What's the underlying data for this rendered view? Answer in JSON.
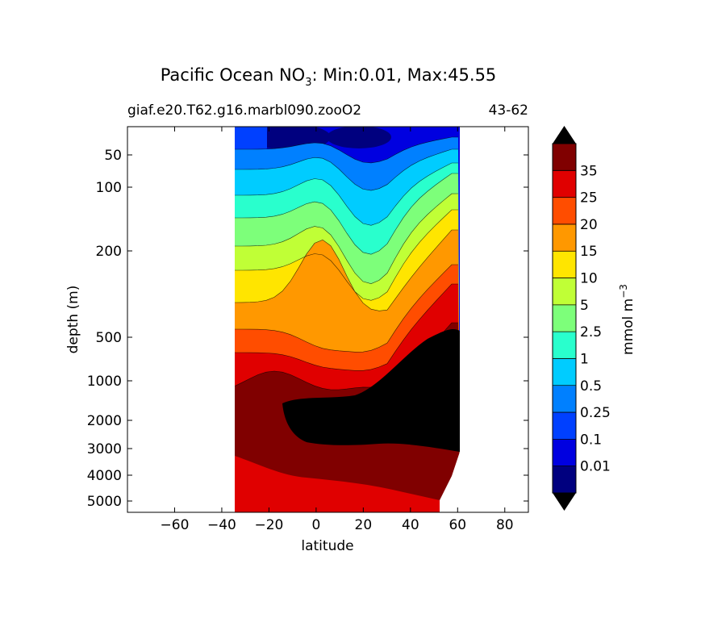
{
  "chart_data": {
    "type": "heatmap",
    "subtype": "filled-contour",
    "title_prefix": "Pacific Ocean NO",
    "title_subscript": "3",
    "title_suffix": ": Min:0.01, Max:45.55",
    "subtitle_left": "giaf.e20.T62.g16.marbl090.zooO2",
    "subtitle_right": "43-62",
    "xlabel": "latitude",
    "ylabel": "depth (m)",
    "xlim": [
      -80,
      90
    ],
    "xticks": [
      -60,
      -40,
      -20,
      0,
      20,
      40,
      60,
      80
    ],
    "xtick_labels": [
      "−60",
      "−40",
      "−20",
      "0",
      "20",
      "40",
      "60",
      "80"
    ],
    "ytick_labels": [
      "50",
      "100",
      "200",
      "500",
      "1000",
      "2000",
      "3000",
      "4000",
      "5000"
    ],
    "colorbar": {
      "label": "mmol m",
      "label_superscript": "−3",
      "levels": [
        "0.01",
        "0.1",
        "0.25",
        "0.5",
        "1",
        "2.5",
        "5",
        "10",
        "15",
        "20",
        "25",
        "35"
      ],
      "colors": [
        "#00007f",
        "#0000e0",
        "#0040ff",
        "#0080ff",
        "#00ccff",
        "#29ffcd",
        "#7dff7a",
        "#c0ff36",
        "#ffe500",
        "#ff9800",
        "#ff4d00",
        "#e00000",
        "#800000"
      ],
      "extend_colors": {
        "under": "#000000",
        "over": "#000000"
      }
    },
    "data_description": [
      {
        "region": "surface (0-80 m)",
        "values": "0.01-1 mmol m-3, lowest near equator and 20-35N"
      },
      {
        "region": "thermocline (100-300 m)",
        "values": "1-15 mmol m-3, equatorial ridge"
      },
      {
        "region": "500-1000 m",
        "values": "20-35 mmol m-3, max in North Pacific"
      },
      {
        "region": "1000-3000 m, 15S-62N",
        "values": "> 40 mmol m-3 (extend-max)"
      },
      {
        "region": "deep south 4000-5500 m",
        "values": "25-35 mmol m-3"
      }
    ]
  }
}
